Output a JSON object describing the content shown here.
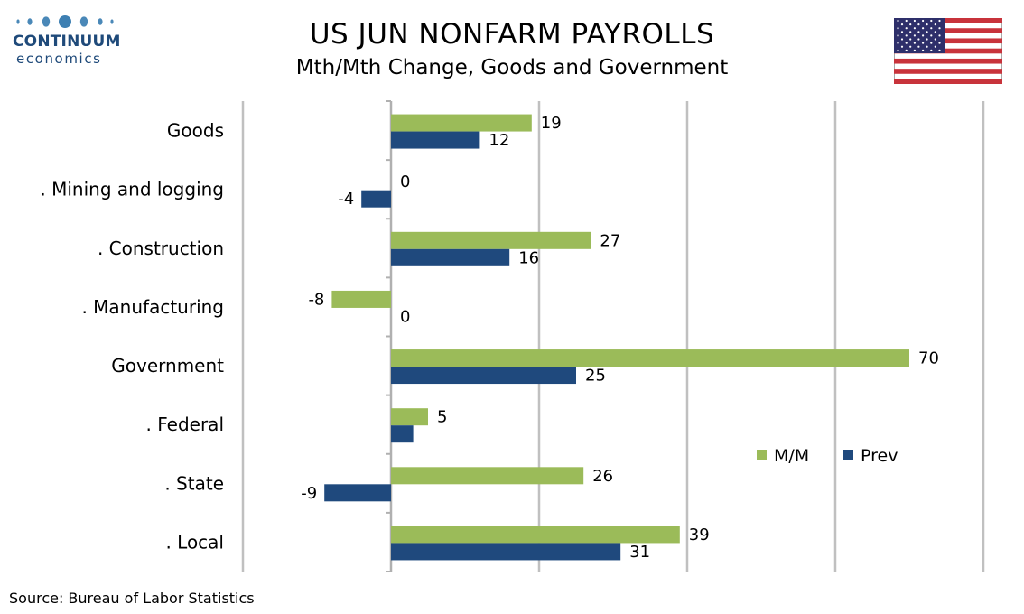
{
  "brand": {
    "name": "CONTINUUM",
    "sub": "economics",
    "color": "#1f4a7a"
  },
  "header": {
    "title": "US JUN NONFARM PAYROLLS",
    "subtitle": "Mth/Mth Change, Goods and Government",
    "flag": "us-flag-icon"
  },
  "source": "Source: Bureau of Labor Statistics",
  "chart_data": {
    "type": "bar",
    "orientation": "horizontal",
    "categories": [
      "Goods",
      ". Mining and logging",
      ". Construction",
      ". Manufacturing",
      "Government",
      ". Federal",
      ". State",
      ". Local"
    ],
    "series": [
      {
        "name": "M/M",
        "color": "#9bbb59",
        "values": [
          19,
          0,
          27,
          -8,
          70,
          5,
          26,
          39
        ],
        "labels": [
          "19",
          "0",
          "27",
          "-8",
          "70",
          "5",
          "26",
          "39"
        ]
      },
      {
        "name": "Prev",
        "color": "#1f497d",
        "values": [
          12,
          -4,
          16,
          0,
          25,
          3,
          -9,
          31
        ],
        "labels": [
          "12",
          "-4",
          "16",
          "0",
          "25",
          "",
          "-9",
          "31"
        ]
      }
    ],
    "xlim": [
      -20,
      80
    ],
    "gridlines": [
      -20,
      0,
      20,
      40,
      60,
      80
    ],
    "grid": true,
    "legend_position": "center-right"
  }
}
